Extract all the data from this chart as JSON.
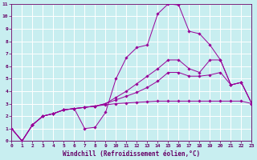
{
  "background_color": "#c8eef0",
  "grid_color": "#ffffff",
  "line_color": "#990099",
  "xlabel": "Windchill (Refroidissement éolien,°C)",
  "xlim": [
    0,
    23
  ],
  "ylim": [
    0,
    11
  ],
  "xticks": [
    0,
    1,
    2,
    3,
    4,
    5,
    6,
    7,
    8,
    9,
    10,
    11,
    12,
    13,
    14,
    15,
    16,
    17,
    18,
    19,
    20,
    21,
    22,
    23
  ],
  "yticks": [
    0,
    1,
    2,
    3,
    4,
    5,
    6,
    7,
    8,
    9,
    10,
    11
  ],
  "series": [
    {
      "x": [
        0,
        1,
        2,
        3,
        4,
        5,
        6,
        7,
        8,
        9,
        10,
        11,
        12,
        13,
        14,
        15,
        16,
        17,
        18,
        19,
        20,
        21,
        22,
        23
      ],
      "y": [
        1,
        0,
        1.3,
        2.0,
        2.2,
        2.5,
        2.6,
        1.0,
        1.1,
        2.3,
        5.0,
        6.7,
        7.5,
        7.7,
        10.2,
        11.0,
        10.9,
        8.8,
        8.6,
        7.7,
        6.5,
        4.5,
        4.7,
        3.0
      ]
    },
    {
      "x": [
        0,
        1,
        2,
        3,
        4,
        5,
        6,
        7,
        8,
        9,
        10,
        11,
        12,
        13,
        14,
        15,
        16,
        17,
        18,
        19,
        20,
        21,
        22,
        23
      ],
      "y": [
        1,
        0,
        1.3,
        2.0,
        2.2,
        2.5,
        2.6,
        2.7,
        2.8,
        3.0,
        3.5,
        4.0,
        4.6,
        5.2,
        5.8,
        6.5,
        6.5,
        5.8,
        5.5,
        6.5,
        6.5,
        4.5,
        4.7,
        3.0
      ]
    },
    {
      "x": [
        0,
        1,
        2,
        3,
        4,
        5,
        6,
        7,
        8,
        9,
        10,
        11,
        12,
        13,
        14,
        15,
        16,
        17,
        18,
        19,
        20,
        21,
        22,
        23
      ],
      "y": [
        1,
        0,
        1.3,
        2.0,
        2.2,
        2.5,
        2.6,
        2.7,
        2.8,
        3.0,
        3.3,
        3.6,
        3.9,
        4.3,
        4.8,
        5.5,
        5.5,
        5.2,
        5.2,
        5.3,
        5.5,
        4.5,
        4.7,
        3.0
      ]
    },
    {
      "x": [
        0,
        1,
        2,
        3,
        4,
        5,
        6,
        7,
        8,
        9,
        10,
        11,
        12,
        13,
        14,
        15,
        16,
        17,
        18,
        19,
        20,
        21,
        22,
        23
      ],
      "y": [
        1,
        0,
        1.3,
        2.0,
        2.2,
        2.5,
        2.6,
        2.7,
        2.8,
        2.9,
        3.0,
        3.05,
        3.1,
        3.15,
        3.2,
        3.2,
        3.2,
        3.2,
        3.2,
        3.2,
        3.2,
        3.2,
        3.2,
        3.0
      ]
    }
  ]
}
